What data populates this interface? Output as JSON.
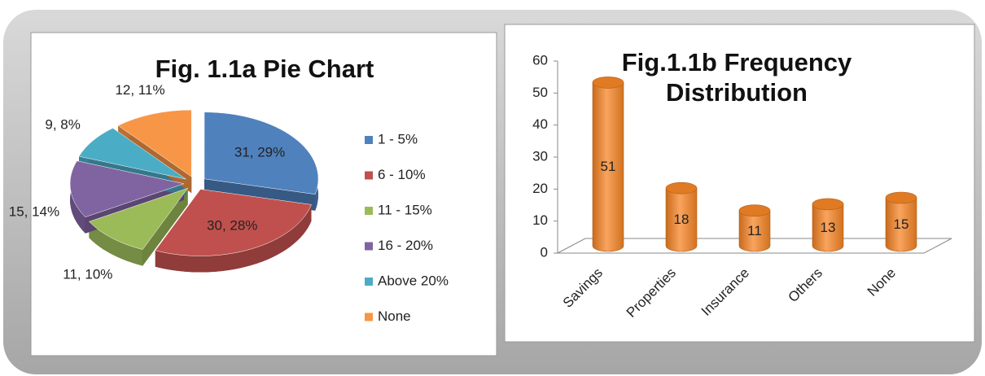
{
  "chart_data": [
    {
      "type": "pie",
      "title": "Fig. 1.1a Pie Chart",
      "categories": [
        "1 - 5%",
        "6 - 10%",
        "11 - 15%",
        "16 - 20%",
        "Above 20%",
        "None"
      ],
      "values": [
        31,
        30,
        11,
        15,
        9,
        12
      ],
      "value_labels": [
        "31, 29%",
        "30, 28%",
        "11, 10%",
        "15, 14%",
        "9, 8%",
        "12, 11%"
      ],
      "colors": [
        "#4f81bd",
        "#c0504d",
        "#9bbb59",
        "#8064a2",
        "#4bacc6",
        "#f79646"
      ],
      "legend": "right"
    },
    {
      "type": "bar",
      "title": "Fig.1.1b Frequency Distribution",
      "categories": [
        "Savings",
        "Properties",
        "Insurance",
        "Others",
        "None"
      ],
      "values": [
        51,
        18,
        11,
        13,
        15
      ],
      "color": "#f79646",
      "ylim": [
        0,
        60
      ],
      "yticks": [
        0,
        10,
        20,
        30,
        40,
        50,
        60
      ]
    }
  ]
}
